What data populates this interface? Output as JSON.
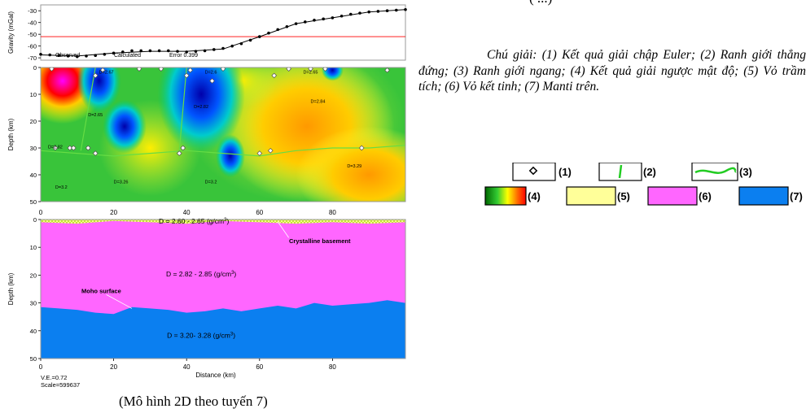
{
  "caption_top": "(                        ...)",
  "caption_bottom": "(Mô hình 2D theo tuyến 7)",
  "legend_paragraph": "Chú giải: (1) Kết quả giải chập Euler; (2) Ranh giới thẳng đứng; (3) Ranh giới ngang; (4) Kết quả giải ngược mật độ; (5) Vỏ trầm tích; (6) Vỏ kết tinh; (7) Manti trên.",
  "legend_keys": [
    "(1)",
    "(2)",
    "(3)",
    "(4)",
    "(5)",
    "(6)",
    "(7)"
  ],
  "colors": {
    "crust": "#ff66ff",
    "mantle": "#0b7ff0",
    "sediment": "#ffff99",
    "observed": "#000000",
    "calculated": "#000000",
    "error": "#ff0000"
  },
  "chart_data": [
    {
      "type": "line",
      "name": "gravity",
      "ylabel": "Gravity (mGal)",
      "yticks": [
        -30,
        -40,
        -50,
        -60,
        -70
      ],
      "ylim": [
        -72,
        -25
      ],
      "xlim": [
        0,
        100
      ],
      "legend": [
        "Observed",
        "Calculated",
        "Error 0.399"
      ],
      "series": [
        {
          "name": "Observed",
          "x": [
            0,
            5,
            10,
            15,
            20,
            25,
            30,
            35,
            40,
            45,
            50,
            55,
            60,
            65,
            70,
            75,
            80,
            85,
            90,
            95,
            100
          ],
          "y": [
            -67,
            -68,
            -69,
            -68,
            -66,
            -64,
            -64,
            -64,
            -65,
            -64,
            -62,
            -58,
            -52,
            -46,
            -41,
            -38,
            -36,
            -33,
            -31,
            -30,
            -29
          ]
        },
        {
          "name": "Calculated",
          "x": [
            0,
            10,
            20,
            30,
            40,
            50,
            60,
            70,
            80,
            90,
            100
          ],
          "y": [
            -67.5,
            -68.5,
            -66,
            -64.5,
            -64.5,
            -62.5,
            -52,
            -41,
            -36,
            -31,
            -29
          ]
        }
      ],
      "error_level": -52
    },
    {
      "type": "heatmap",
      "name": "density_inversion",
      "ylabel": "Depth (km)",
      "xticks": [
        0,
        20,
        40,
        60,
        80
      ],
      "yticks": [
        0,
        10,
        20,
        30,
        40,
        50
      ],
      "xlim": [
        0,
        100
      ],
      "ylim": [
        50,
        0
      ],
      "labels": [
        {
          "text": "D=2.67",
          "x": 16,
          "y": 1
        },
        {
          "text": "D=2.6",
          "x": 45,
          "y": 1
        },
        {
          "text": "D=2.65",
          "x": 72,
          "y": 1
        },
        {
          "text": "D=2.65",
          "x": 13,
          "y": 17
        },
        {
          "text": "D=2.82",
          "x": 42,
          "y": 14
        },
        {
          "text": "D=2.84",
          "x": 74,
          "y": 12
        },
        {
          "text": "D=2.82",
          "x": 2,
          "y": 29
        },
        {
          "text": "D=3.29",
          "x": 84,
          "y": 36
        },
        {
          "text": "D=3.2",
          "x": 4,
          "y": 44
        },
        {
          "text": "D=3.26",
          "x": 20,
          "y": 42
        },
        {
          "text": "D=3.2",
          "x": 45,
          "y": 42
        }
      ],
      "moho": {
        "x": [
          0,
          10,
          20,
          30,
          40,
          50,
          60,
          70,
          80,
          90,
          100
        ],
        "y": [
          31,
          32,
          33,
          32,
          31,
          32,
          33,
          31,
          30,
          30,
          29
        ]
      },
      "euler_points": {
        "x": [
          3,
          4,
          8,
          9,
          13,
          15,
          15,
          17,
          27,
          33,
          38,
          39,
          40,
          41,
          47,
          50,
          60,
          63,
          64,
          68,
          74,
          78,
          88,
          95
        ],
        "y": [
          0,
          30,
          30,
          30,
          30,
          32,
          3,
          1,
          -1,
          -1,
          32,
          30,
          3,
          1,
          5,
          -1,
          32,
          31,
          3,
          0,
          0,
          -1,
          30,
          1
        ]
      }
    },
    {
      "type": "area",
      "name": "density_model",
      "ylabel": "Depth (km)",
      "xlabel": "Distance (km)",
      "xticks": [
        0,
        20,
        40,
        60,
        80
      ],
      "yticks": [
        0,
        10,
        20,
        30,
        40,
        50
      ],
      "xlim": [
        0,
        100
      ],
      "ylim": [
        50,
        0
      ],
      "basement": {
        "x": [
          0,
          10,
          20,
          30,
          40,
          50,
          60,
          70,
          80,
          90,
          100
        ],
        "y": [
          1,
          1.5,
          0.5,
          1,
          1.5,
          0.5,
          1,
          1.5,
          1,
          1.5,
          1
        ]
      },
      "moho": {
        "x": [
          0,
          5,
          10,
          15,
          20,
          25,
          30,
          35,
          40,
          45,
          50,
          55,
          60,
          65,
          70,
          75,
          80,
          85,
          90,
          95,
          100
        ],
        "y": [
          31.5,
          32,
          32.5,
          33.5,
          34,
          31.5,
          32,
          32.5,
          33.5,
          33,
          32,
          33,
          32,
          31,
          32,
          30,
          31,
          30.5,
          30,
          29,
          30
        ]
      },
      "annotations": {
        "sediment": "D = 2.60 - 2.65 (g/cm",
        "crust": "D = 2.82 - 2.85 (g/cm",
        "mantle": "D = 3.20- 3.28 (g/cm",
        "unit_sup": "3",
        "unit_close": ")",
        "basement_label": "Crystalline basement",
        "moho_label": "Moho surface"
      },
      "ve": "V.E.=0.72",
      "scale": "Scale=599637"
    }
  ]
}
